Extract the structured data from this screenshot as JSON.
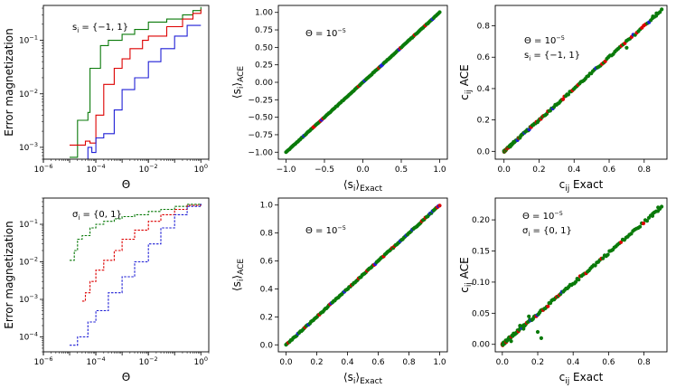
{
  "colors": {
    "red": "#dd0000",
    "green": "#0a7a0a",
    "blue": "#1f1fd6"
  },
  "chart_data": [
    {
      "id": "p1",
      "type": "line",
      "panel": "top-left",
      "xscale": "log",
      "yscale": "log",
      "xlim": [
        1e-06,
        2
      ],
      "ylim": [
        0.0006,
        0.45
      ],
      "xticks": [
        {
          "v": 1e-06,
          "label": "10^-6"
        },
        {
          "v": 0.0001,
          "label": "10^-4"
        },
        {
          "v": 0.01,
          "label": "10^-2"
        },
        {
          "v": 1,
          "label": "10^0"
        }
      ],
      "yticks": [
        {
          "v": 0.001,
          "label": "10^-3"
        },
        {
          "v": 0.01,
          "label": "10^-2"
        },
        {
          "v": 0.1,
          "label": "10^-1"
        }
      ],
      "xlabel": "Θ",
      "ylabel": "Error magnetization",
      "annotation": [
        "s_i = {−1, 1}"
      ],
      "series": [
        {
          "name": "green",
          "color": "green",
          "x": [
            1e-05,
            2e-05,
            2e-05,
            3e-05,
            5e-05,
            6e-05,
            0.0001,
            0.00015,
            0.0003,
            0.001,
            0.003,
            0.01,
            0.05,
            0.2,
            0.5,
            1
          ],
          "y": [
            0.00065,
            0.00065,
            0.0032,
            0.0032,
            0.0045,
            0.03,
            0.03,
            0.08,
            0.1,
            0.13,
            0.16,
            0.22,
            0.25,
            0.3,
            0.36,
            0.42
          ]
        },
        {
          "name": "red",
          "color": "red",
          "x": [
            1e-05,
            4e-05,
            6e-05,
            0.0001,
            0.0002,
            0.0005,
            0.001,
            0.002,
            0.006,
            0.01,
            0.05,
            0.2,
            0.5,
            1
          ],
          "y": [
            0.0011,
            0.0013,
            0.0012,
            0.004,
            0.015,
            0.03,
            0.045,
            0.07,
            0.1,
            0.12,
            0.18,
            0.25,
            0.32,
            0.38
          ]
        },
        {
          "name": "blue",
          "color": "blue",
          "x": [
            3e-05,
            5e-05,
            7e-05,
            0.0001,
            0.0002,
            0.0005,
            0.001,
            0.003,
            0.01,
            0.03,
            0.1,
            0.3,
            1
          ],
          "y": [
            0.00055,
            0.001,
            0.0008,
            0.0015,
            0.0018,
            0.005,
            0.012,
            0.02,
            0.04,
            0.07,
            0.12,
            0.19,
            0.19
          ]
        }
      ]
    },
    {
      "id": "p2",
      "type": "scatter",
      "panel": "top-middle",
      "xlim": [
        -1.1,
        1.1
      ],
      "ylim": [
        -1.1,
        1.1
      ],
      "xticks": [
        -1.0,
        -0.5,
        0.0,
        0.5,
        1.0
      ],
      "yticks": [
        -1.0,
        -0.75,
        -0.5,
        -0.25,
        0.0,
        0.25,
        0.5,
        0.75,
        1.0
      ],
      "xtick_labels": [
        "−1.0",
        "−0.5",
        "0.0",
        "0.5",
        "1.0"
      ],
      "ytick_labels": [
        "−1.00",
        "−0.75",
        "−0.50",
        "−0.25",
        "0.00",
        "0.25",
        "0.50",
        "0.75",
        "1.00"
      ],
      "xlabel": "⟨s_i⟩_Exact",
      "ylabel": "⟨s_i⟩_ACE",
      "annotation": [
        "Θ = 10^-5"
      ],
      "diagonal_range": [
        -1.0,
        1.0
      ],
      "noise": 0.004
    },
    {
      "id": "p3",
      "type": "scatter",
      "panel": "top-right",
      "xlim": [
        -0.05,
        0.93
      ],
      "ylim": [
        -0.05,
        0.93
      ],
      "xticks": [
        0.0,
        0.2,
        0.4,
        0.6,
        0.8
      ],
      "yticks": [
        0.0,
        0.2,
        0.4,
        0.6,
        0.8
      ],
      "xtick_labels": [
        "0.0",
        "0.2",
        "0.4",
        "0.6",
        "0.8"
      ],
      "ytick_labels": [
        "0.0",
        "0.2",
        "0.4",
        "0.6",
        "0.8"
      ],
      "xlabel": "c_ij Exact",
      "ylabel": "c_ij ACE",
      "annotation": [
        "Θ = 10^-5",
        "s_i = {−1, 1}"
      ],
      "diagonal_range": [
        0.0,
        0.9
      ],
      "noise": 0.006
    },
    {
      "id": "p4",
      "type": "line",
      "panel": "bottom-left",
      "xscale": "log",
      "yscale": "log",
      "xlim": [
        1e-06,
        2
      ],
      "ylim": [
        4e-05,
        0.5
      ],
      "xticks": [
        {
          "v": 1e-06,
          "label": "10^-6"
        },
        {
          "v": 0.0001,
          "label": "10^-4"
        },
        {
          "v": 0.01,
          "label": "10^-2"
        },
        {
          "v": 1,
          "label": "10^0"
        }
      ],
      "yticks": [
        {
          "v": 0.0001,
          "label": "10^-4"
        },
        {
          "v": 0.001,
          "label": "10^-3"
        },
        {
          "v": 0.01,
          "label": "10^-2"
        },
        {
          "v": 0.1,
          "label": "10^-1"
        }
      ],
      "xlabel": "Θ",
      "ylabel": "Error magnetization",
      "annotation": [
        "σ_i = {0, 1}"
      ],
      "dashed": true,
      "series": [
        {
          "name": "green",
          "color": "green",
          "x": [
            1e-05,
            1.5e-05,
            2e-05,
            3e-05,
            6e-05,
            0.0001,
            0.0002,
            0.0005,
            0.001,
            0.003,
            0.01,
            0.03,
            0.1,
            0.3,
            1
          ],
          "y": [
            0.011,
            0.02,
            0.04,
            0.05,
            0.08,
            0.1,
            0.12,
            0.14,
            0.16,
            0.18,
            0.22,
            0.25,
            0.3,
            0.34,
            0.35
          ]
        },
        {
          "name": "red",
          "color": "red",
          "x": [
            3e-05,
            4e-05,
            6e-05,
            0.0001,
            0.0002,
            0.0005,
            0.001,
            0.003,
            0.01,
            0.03,
            0.1,
            0.3,
            1
          ],
          "y": [
            0.0009,
            0.0015,
            0.003,
            0.006,
            0.011,
            0.02,
            0.04,
            0.07,
            0.12,
            0.18,
            0.25,
            0.32,
            0.35
          ]
        },
        {
          "name": "blue",
          "color": "blue",
          "x": [
            1e-05,
            2e-05,
            5e-05,
            0.0001,
            0.0003,
            0.001,
            0.003,
            0.01,
            0.03,
            0.1,
            0.3,
            1
          ],
          "y": [
            6e-05,
            0.0001,
            0.00025,
            0.0005,
            0.0015,
            0.004,
            0.01,
            0.03,
            0.08,
            0.18,
            0.3,
            0.35
          ]
        }
      ]
    },
    {
      "id": "p5",
      "type": "scatter",
      "panel": "bottom-middle",
      "xlim": [
        -0.05,
        1.05
      ],
      "ylim": [
        -0.05,
        1.05
      ],
      "xticks": [
        0.0,
        0.2,
        0.4,
        0.6,
        0.8,
        1.0
      ],
      "yticks": [
        0.0,
        0.2,
        0.4,
        0.6,
        0.8,
        1.0
      ],
      "xtick_labels": [
        "0.0",
        "0.2",
        "0.4",
        "0.6",
        "0.8",
        "1.0"
      ],
      "ytick_labels": [
        "0.0",
        "0.2",
        "0.4",
        "0.6",
        "0.8",
        "1.0"
      ],
      "xlabel": "⟨s_i⟩_Exact",
      "ylabel": "⟨s_i⟩_ACE",
      "annotation": [
        "Θ = 10^-5"
      ],
      "diagonal_range": [
        0.0,
        1.0
      ],
      "noise": 0.004
    },
    {
      "id": "p6",
      "type": "scatter",
      "panel": "bottom-right",
      "xlim": [
        -0.04,
        0.93
      ],
      "ylim": [
        -0.012,
        0.235
      ],
      "xticks": [
        0.0,
        0.2,
        0.4,
        0.6,
        0.8
      ],
      "yticks": [
        0.0,
        0.05,
        0.1,
        0.15,
        0.2
      ],
      "xtick_labels": [
        "0.0",
        "0.2",
        "0.4",
        "0.6",
        "0.8"
      ],
      "ytick_labels": [
        "0.00",
        "0.05",
        "0.10",
        "0.15",
        "0.20"
      ],
      "xlabel": "c_ij Exact",
      "ylabel": "c_ij ACE",
      "annotation": [
        "Θ = 10^-5",
        "σ_i = {0, 1}"
      ],
      "diagonal_range": [
        0.0,
        0.9
      ],
      "slope": 0.245,
      "noise": 0.002
    }
  ]
}
